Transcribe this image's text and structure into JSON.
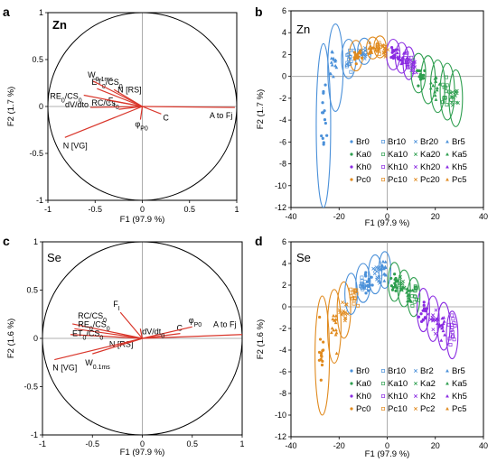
{
  "panels": {
    "a": {
      "letter": "a",
      "element": "Zn"
    },
    "b": {
      "letter": "b",
      "element": "Zn"
    },
    "c": {
      "letter": "c",
      "element": "Se"
    },
    "d": {
      "letter": "d",
      "element": "Se"
    }
  },
  "colors": {
    "Br": "#4a90d9",
    "Ka": "#2e9e4f",
    "Kh": "#8a2be2",
    "Pc": "#e08a1e",
    "vector": "#d9362b"
  },
  "chart_data": [
    {
      "panel": "a",
      "type": "correlation-circle",
      "title": "Zn",
      "xlabel": "F1 (97.9 %)",
      "ylabel": "F2 (1.7 %)",
      "xlim": [
        -1,
        1
      ],
      "ylim": [
        -1,
        1
      ],
      "xticks": [
        "-1",
        "-0.5",
        "0",
        "0.5",
        "1"
      ],
      "yticks": [
        "1",
        "0.5",
        "0",
        "-0.5",
        "-1"
      ],
      "vectors": [
        {
          "label": "A to Fj",
          "x": 0.98,
          "y": -0.01
        },
        {
          "label": "C",
          "x": 0.2,
          "y": -0.08
        },
        {
          "label": "φP0",
          "x": -0.02,
          "y": -0.14
        },
        {
          "label": "RC/CS0",
          "x": -0.25,
          "y": -0.03
        },
        {
          "label": "dV/dt0",
          "x": -0.55,
          "y": -0.01
        },
        {
          "label": "Fi",
          "x": -0.38,
          "y": 0.07
        },
        {
          "label": "RE0/CS0",
          "x": -0.62,
          "y": 0.12
        },
        {
          "label": "ET0/CS0",
          "x": -0.48,
          "y": 0.19
        },
        {
          "label": "N [RS]",
          "x": -0.3,
          "y": 0.18
        },
        {
          "label": "W0.1ms",
          "x": -0.52,
          "y": 0.27
        },
        {
          "label": "N [VG]",
          "x": -0.82,
          "y": -0.33
        }
      ]
    },
    {
      "panel": "b",
      "type": "scatter",
      "title": "Zn",
      "xlabel": "F1 (97.9 %)",
      "ylabel": "F2 (1.7 %)",
      "xlim": [
        -40,
        40
      ],
      "ylim": [
        -12,
        6
      ],
      "xticks": [
        "-40",
        "-20",
        "0",
        "20",
        "40"
      ],
      "yticks": [
        "6",
        "4",
        "2",
        "0",
        "-2",
        "-4",
        "-6",
        "-8",
        "-10",
        "-12"
      ],
      "legend": {
        "placement": "bottom-right",
        "entries": [
          "Br0",
          "Br10",
          "Br20",
          "Br5",
          "Ka0",
          "Ka10",
          "Ka20",
          "Ka5",
          "Kh0",
          "Kh10",
          "Kh20",
          "Kh5",
          "Pc0",
          "Pc10",
          "Pc20",
          "Pc5"
        ]
      },
      "series": [
        {
          "name": "Br0",
          "group": "Br",
          "cx": -26.5,
          "cy": -4.2,
          "sx": 1.2,
          "sy": 2.3
        },
        {
          "name": "Br5",
          "group": "Br",
          "cx": -22,
          "cy": 0.8,
          "sx": 1.5,
          "sy": 1.3
        },
        {
          "name": "Br10",
          "group": "Br",
          "cx": -16,
          "cy": 1.6,
          "sx": 1.4,
          "sy": 0.7
        },
        {
          "name": "Br20",
          "group": "Br",
          "cx": -10,
          "cy": 2.1,
          "sx": 1.3,
          "sy": 0.5
        },
        {
          "name": "Pc0",
          "group": "Pc",
          "cx": -12.5,
          "cy": 1.9,
          "sx": 1.2,
          "sy": 0.5
        },
        {
          "name": "Pc5",
          "group": "Pc",
          "cx": -7,
          "cy": 2.4,
          "sx": 1.2,
          "sy": 0.4
        },
        {
          "name": "Pc10",
          "group": "Pc",
          "cx": -4,
          "cy": 2.6,
          "sx": 1.1,
          "sy": 0.4
        },
        {
          "name": "Pc20",
          "group": "Pc",
          "cx": -1,
          "cy": 2.5,
          "sx": 1.1,
          "sy": 0.4
        },
        {
          "name": "Kh0",
          "group": "Kh",
          "cx": 3,
          "cy": 2.1,
          "sx": 1.2,
          "sy": 0.5
        },
        {
          "name": "Kh5",
          "group": "Kh",
          "cx": 6,
          "cy": 1.8,
          "sx": 1.2,
          "sy": 0.5
        },
        {
          "name": "Kh10",
          "group": "Kh",
          "cx": 8.5,
          "cy": 1.4,
          "sx": 1.1,
          "sy": 0.5
        },
        {
          "name": "Kh20",
          "group": "Kh",
          "cx": 10.5,
          "cy": 1.0,
          "sx": 1.0,
          "sy": 0.6
        },
        {
          "name": "Ka0",
          "group": "Ka",
          "cx": 14,
          "cy": 0.2,
          "sx": 1.3,
          "sy": 0.7
        },
        {
          "name": "Ka5",
          "group": "Ka",
          "cx": 20,
          "cy": -0.8,
          "sx": 1.3,
          "sy": 0.9
        },
        {
          "name": "Ka10",
          "group": "Ka",
          "cx": 24,
          "cy": -1.3,
          "sx": 1.2,
          "sy": 1.0
        },
        {
          "name": "Ka20",
          "group": "Ka",
          "cx": 28,
          "cy": -2.0,
          "sx": 1.2,
          "sy": 1.1
        }
      ],
      "ellipses": [
        {
          "group": "Br",
          "cx": -26.5,
          "cy": -4.5,
          "rx": 3,
          "ry": 7.5
        },
        {
          "group": "Br",
          "cx": -21.5,
          "cy": 0.8,
          "rx": 3.2,
          "ry": 4.0
        },
        {
          "group": "Br",
          "cx": -16,
          "cy": 1.6,
          "rx": 3,
          "ry": 1.8
        },
        {
          "group": "Pc",
          "cx": -13,
          "cy": 1.9,
          "rx": 2.8,
          "ry": 1.4
        },
        {
          "group": "Br",
          "cx": -9.5,
          "cy": 2.3,
          "rx": 2.8,
          "ry": 1.2
        },
        {
          "group": "Pc",
          "cx": -6,
          "cy": 2.6,
          "rx": 2.6,
          "ry": 1.0
        },
        {
          "group": "Pc",
          "cx": -3,
          "cy": 2.7,
          "rx": 2.5,
          "ry": 1.0
        },
        {
          "group": "Kh",
          "cx": 2.5,
          "cy": 2.0,
          "rx": 2.8,
          "ry": 1.4
        },
        {
          "group": "Kh",
          "cx": 6,
          "cy": 1.7,
          "rx": 2.6,
          "ry": 1.4
        },
        {
          "group": "Kh",
          "cx": 9,
          "cy": 1.2,
          "rx": 2.4,
          "ry": 1.5
        },
        {
          "group": "Ka",
          "cx": 13,
          "cy": 0.3,
          "rx": 3,
          "ry": 1.8
        },
        {
          "group": "Ka",
          "cx": 17,
          "cy": -0.3,
          "rx": 3,
          "ry": 2.2
        },
        {
          "group": "Ka",
          "cx": 21,
          "cy": -0.9,
          "rx": 3,
          "ry": 2.4
        },
        {
          "group": "Ka",
          "cx": 25,
          "cy": -1.4,
          "rx": 3,
          "ry": 2.6
        },
        {
          "group": "Ka",
          "cx": 28.5,
          "cy": -2.0,
          "rx": 2.8,
          "ry": 2.6
        }
      ]
    },
    {
      "panel": "c",
      "type": "correlation-circle",
      "title": "Se",
      "xlabel": "F1 (97.9 %)",
      "ylabel": "F2 (1.6 %)",
      "xlim": [
        -1,
        1
      ],
      "ylim": [
        -1,
        1
      ],
      "xticks": [
        "-1",
        "-0.5",
        "0",
        "0.5",
        "1"
      ],
      "yticks": [
        "1",
        "0.5",
        "0",
        "-0.5",
        "-1"
      ],
      "vectors": [
        {
          "label": "A to Fj",
          "x": 1.0,
          "y": 0.04
        },
        {
          "label": "C",
          "x": 0.38,
          "y": 0.05
        },
        {
          "label": "φP0",
          "x": 0.5,
          "y": 0.12
        },
        {
          "label": "dV/dt0",
          "x": -0.02,
          "y": 0.1
        },
        {
          "label": "Fi",
          "x": -0.22,
          "y": 0.27
        },
        {
          "label": "RC/CS0",
          "x": -0.7,
          "y": 0.15
        },
        {
          "label": "RE0/CS0",
          "x": -0.68,
          "y": 0.1
        },
        {
          "label": "ET0/CS0",
          "x": -0.72,
          "y": 0.04
        },
        {
          "label": "N [RS]",
          "x": -0.15,
          "y": -0.05
        },
        {
          "label": "W0.1ms",
          "x": -0.5,
          "y": -0.16
        },
        {
          "label": "N [VG]",
          "x": -0.88,
          "y": -0.22
        }
      ]
    },
    {
      "panel": "d",
      "type": "scatter",
      "title": "Se",
      "xlabel": "F1 (97.9 %)",
      "ylabel": "F2 (1.6 %)",
      "xlim": [
        -40,
        40
      ],
      "ylim": [
        -12,
        6
      ],
      "xticks": [
        "-40",
        "-20",
        "0",
        "20",
        "40"
      ],
      "yticks": [
        "6",
        "4",
        "2",
        "0",
        "-2",
        "-4",
        "-6",
        "-8",
        "-10",
        "-12"
      ],
      "legend": {
        "placement": "bottom-right",
        "entries": [
          "Br0",
          "Br10",
          "Br2",
          "Br5",
          "Ka0",
          "Ka10",
          "Ka2",
          "Ka5",
          "Kh0",
          "Kh10",
          "Kh2",
          "Kh5",
          "Pc0",
          "Pc10",
          "Pc2",
          "Pc5"
        ]
      },
      "series": [
        {
          "name": "Pc0",
          "group": "Pc",
          "cx": -27,
          "cy": -4.5,
          "sx": 1.2,
          "sy": 1.8
        },
        {
          "name": "Pc5",
          "group": "Pc",
          "cx": -22,
          "cy": -2.0,
          "sx": 1.2,
          "sy": 1.2
        },
        {
          "name": "Pc2",
          "group": "Pc",
          "cx": -18,
          "cy": -0.5,
          "sx": 1.2,
          "sy": 1.0
        },
        {
          "name": "Pc10",
          "group": "Pc",
          "cx": -14,
          "cy": 1.0,
          "sx": 1.2,
          "sy": 0.8
        },
        {
          "name": "Br0",
          "group": "Br",
          "cx": -8,
          "cy": 2.2,
          "sx": 1.3,
          "sy": 0.7
        },
        {
          "name": "Br2",
          "group": "Br",
          "cx": -4,
          "cy": 3.0,
          "sx": 1.2,
          "sy": 0.7
        },
        {
          "name": "Br5",
          "group": "Br",
          "cx": -1,
          "cy": 3.2,
          "sx": 1.1,
          "sy": 0.7
        },
        {
          "name": "Br10",
          "group": "Br",
          "cx": -10,
          "cy": 2.0,
          "sx": 1.2,
          "sy": 0.6
        },
        {
          "name": "Ka0",
          "group": "Ka",
          "cx": 3,
          "cy": 2.2,
          "sx": 1.2,
          "sy": 0.7
        },
        {
          "name": "Ka2",
          "group": "Ka",
          "cx": 6,
          "cy": 1.8,
          "sx": 1.2,
          "sy": 0.7
        },
        {
          "name": "Ka5",
          "group": "Ka",
          "cx": 9,
          "cy": 1.2,
          "sx": 1.2,
          "sy": 0.7
        },
        {
          "name": "Ka10",
          "group": "Ka",
          "cx": 12,
          "cy": 0.7,
          "sx": 1.2,
          "sy": 0.8
        },
        {
          "name": "Kh0",
          "group": "Kh",
          "cx": 15,
          "cy": -0.4,
          "sx": 1.2,
          "sy": 0.9
        },
        {
          "name": "Kh2",
          "group": "Kh",
          "cx": 19,
          "cy": -1.3,
          "sx": 1.2,
          "sy": 0.9
        },
        {
          "name": "Kh5",
          "group": "Kh",
          "cx": 23,
          "cy": -1.8,
          "sx": 1.2,
          "sy": 1.0
        },
        {
          "name": "Kh10",
          "group": "Kh",
          "cx": 27,
          "cy": -2.5,
          "sx": 1.1,
          "sy": 1.0
        }
      ],
      "ellipses": [
        {
          "group": "Pc",
          "cx": -27,
          "cy": -4.5,
          "rx": 3,
          "ry": 5.5
        },
        {
          "group": "Pc",
          "cx": -22,
          "cy": -1.8,
          "rx": 2.8,
          "ry": 3.4
        },
        {
          "group": "Pc",
          "cx": -18,
          "cy": -0.3,
          "rx": 2.8,
          "ry": 2.6
        },
        {
          "group": "Br",
          "cx": -15,
          "cy": 1.2,
          "rx": 2.6,
          "ry": 1.9
        },
        {
          "group": "Br",
          "cx": -10,
          "cy": 2.2,
          "rx": 3,
          "ry": 1.8
        },
        {
          "group": "Br",
          "cx": -5,
          "cy": 3.0,
          "rx": 2.8,
          "ry": 1.8
        },
        {
          "group": "Br",
          "cx": -1,
          "cy": 3.4,
          "rx": 2.5,
          "ry": 1.7
        },
        {
          "group": "Ka",
          "cx": 3,
          "cy": 2.3,
          "rx": 2.6,
          "ry": 1.8
        },
        {
          "group": "Ka",
          "cx": 7,
          "cy": 1.7,
          "rx": 2.6,
          "ry": 1.7
        },
        {
          "group": "Ka",
          "cx": 11,
          "cy": 0.9,
          "rx": 2.6,
          "ry": 1.8
        },
        {
          "group": "Kh",
          "cx": 15,
          "cy": -0.3,
          "rx": 2.6,
          "ry": 2.0
        },
        {
          "group": "Kh",
          "cx": 19,
          "cy": -1.1,
          "rx": 2.6,
          "ry": 2.1
        },
        {
          "group": "Kh",
          "cx": 23.5,
          "cy": -1.8,
          "rx": 2.6,
          "ry": 2.2
        },
        {
          "group": "Kh",
          "cx": 27,
          "cy": -2.6,
          "rx": 2.4,
          "ry": 2.2
        }
      ]
    }
  ]
}
